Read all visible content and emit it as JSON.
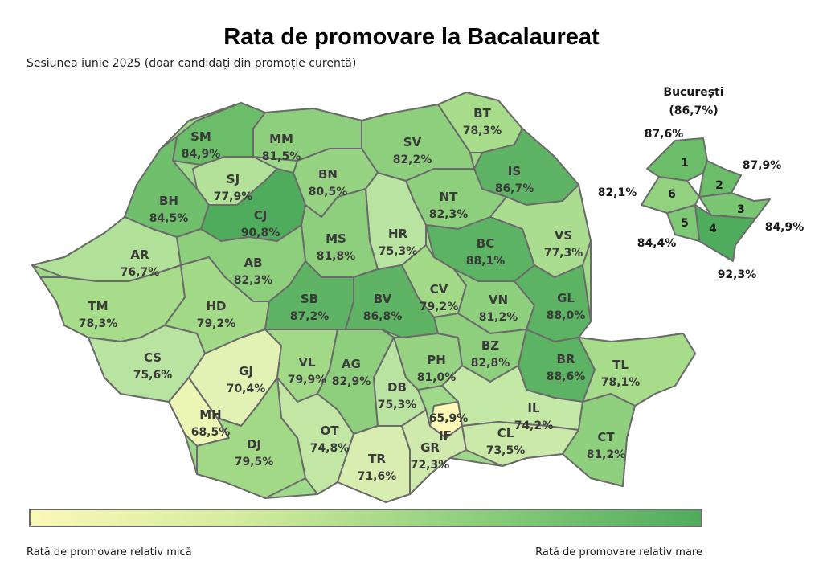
{
  "title": "Rata de promovare la Bacalaureat",
  "subtitle": "Sesiunea iunie 2025 (doar candidați din promoție curentă)",
  "color_scale": {
    "low": "#fbf8b8",
    "mid": "#a6dc8a",
    "high": "#4fac5c"
  },
  "counties": [
    {
      "code": "SM",
      "value": "84,9%"
    },
    {
      "code": "MM",
      "value": "81,5%"
    },
    {
      "code": "BT",
      "value": "78,3%"
    },
    {
      "code": "SV",
      "value": "82,2%"
    },
    {
      "code": "SJ",
      "value": "77,9%"
    },
    {
      "code": "BN",
      "value": "80,5%"
    },
    {
      "code": "IS",
      "value": "86,7%"
    },
    {
      "code": "BH",
      "value": "84,5%"
    },
    {
      "code": "CJ",
      "value": "90,8%"
    },
    {
      "code": "NT",
      "value": "82,3%"
    },
    {
      "code": "HR",
      "value": "75,3%"
    },
    {
      "code": "MS",
      "value": "81,8%"
    },
    {
      "code": "BC",
      "value": "88,1%"
    },
    {
      "code": "VS",
      "value": "77,3%"
    },
    {
      "code": "AR",
      "value": "76,7%"
    },
    {
      "code": "AB",
      "value": "82,3%"
    },
    {
      "code": "CV",
      "value": "79,2%"
    },
    {
      "code": "VN",
      "value": "81,2%"
    },
    {
      "code": "GL",
      "value": "88,0%"
    },
    {
      "code": "TM",
      "value": "78,3%"
    },
    {
      "code": "HD",
      "value": "79,2%"
    },
    {
      "code": "SB",
      "value": "87,2%"
    },
    {
      "code": "BV",
      "value": "86,8%"
    },
    {
      "code": "CS",
      "value": "75,6%"
    },
    {
      "code": "GJ",
      "value": "70,4%"
    },
    {
      "code": "VL",
      "value": "79,9%"
    },
    {
      "code": "AG",
      "value": "82,9%"
    },
    {
      "code": "PH",
      "value": "81,0%"
    },
    {
      "code": "BZ",
      "value": "82,8%"
    },
    {
      "code": "BR",
      "value": "88,6%"
    },
    {
      "code": "TL",
      "value": "78,1%"
    },
    {
      "code": "MH",
      "value": "68,5%"
    },
    {
      "code": "DB",
      "value": "75,3%"
    },
    {
      "code": "IF",
      "value": "65,9%"
    },
    {
      "code": "IL",
      "value": "74,2%"
    },
    {
      "code": "OT",
      "value": "74,8%"
    },
    {
      "code": "DJ",
      "value": "79,5%"
    },
    {
      "code": "TR",
      "value": "71,6%"
    },
    {
      "code": "GR",
      "value": "72,3%"
    },
    {
      "code": "CL",
      "value": "73,5%"
    },
    {
      "code": "CT",
      "value": "81,2%"
    }
  ],
  "bucuresti": {
    "title": "București",
    "value": "(86,7%)",
    "sectors": [
      {
        "num": "1",
        "value": "87,6%"
      },
      {
        "num": "2",
        "value": "87,9%"
      },
      {
        "num": "3",
        "value": "84,9%"
      },
      {
        "num": "4",
        "value": "92,3%"
      },
      {
        "num": "5",
        "value": "84,4%"
      },
      {
        "num": "6",
        "value": "82,1%"
      }
    ]
  },
  "legend": {
    "low_label": "Rată de promovare relativ mică",
    "high_label": "Rată de promovare relativ mare"
  }
}
